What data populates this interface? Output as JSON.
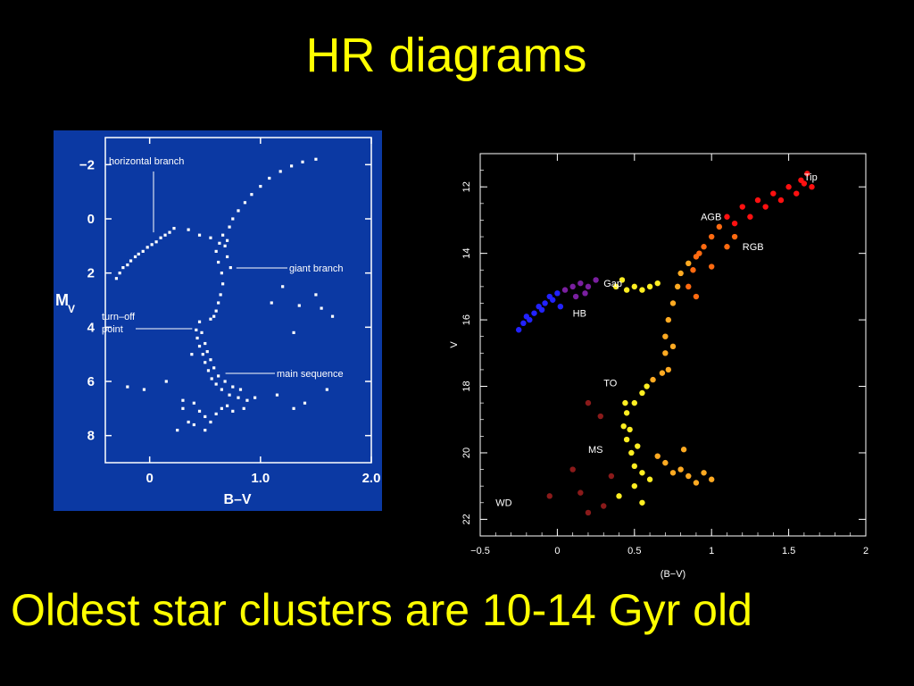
{
  "title": "HR diagrams",
  "footer": "Oldest star clusters are 10-14 Gyr old",
  "colors": {
    "background": "#000000",
    "text": "#ffff00",
    "left_panel": "#0b39a3",
    "left_points": "#ffffff"
  },
  "chart_data": [
    {
      "type": "scatter",
      "xlabel": "B–V",
      "ylabel": "M",
      "ylabel_sub": "V",
      "xlim": [
        -0.4,
        2.0
      ],
      "ylim": [
        9.0,
        -3.0
      ],
      "x_ticks": [
        {
          "value": 0,
          "label": "0"
        },
        {
          "value": 1.0,
          "label": "1.0"
        },
        {
          "value": 2.0,
          "label": "2.0"
        }
      ],
      "y_ticks": [
        {
          "value": -2,
          "label": "−2"
        },
        {
          "value": 0,
          "label": "0"
        },
        {
          "value": 2,
          "label": "2"
        },
        {
          "value": 4,
          "label": "4"
        },
        {
          "value": 6,
          "label": "6"
        },
        {
          "value": 8,
          "label": "8"
        }
      ],
      "annotations": [
        {
          "text": "horizontal branch",
          "x": 0.1,
          "y": 0.5
        },
        {
          "text": "giant branch",
          "x": 0.75,
          "y": 1.5
        },
        {
          "text": "turn–off",
          "x": 0.4,
          "y": 3.8
        },
        {
          "text": "point",
          "x": 0.4,
          "y": 3.8
        },
        {
          "text": "main sequence",
          "x": 0.7,
          "y": 5.5
        }
      ],
      "series": [
        {
          "name": "",
          "points": [
            [
              -0.3,
              2.2
            ],
            [
              -0.27,
              2.0
            ],
            [
              -0.24,
              1.8
            ],
            [
              -0.2,
              1.7
            ],
            [
              -0.17,
              1.55
            ],
            [
              -0.13,
              1.4
            ],
            [
              -0.1,
              1.3
            ],
            [
              -0.06,
              1.2
            ],
            [
              -0.02,
              1.05
            ],
            [
              0.02,
              0.95
            ],
            [
              0.06,
              0.85
            ],
            [
              0.1,
              0.7
            ],
            [
              0.14,
              0.6
            ],
            [
              0.18,
              0.5
            ],
            [
              0.22,
              0.35
            ],
            [
              0.35,
              0.4
            ],
            [
              0.45,
              0.6
            ],
            [
              0.55,
              0.7
            ],
            [
              0.6,
              1.2
            ],
            [
              0.62,
              1.6
            ],
            [
              0.65,
              2.0
            ],
            [
              0.66,
              2.4
            ],
            [
              0.64,
              2.8
            ],
            [
              0.62,
              3.1
            ],
            [
              0.6,
              3.4
            ],
            [
              0.58,
              3.6
            ],
            [
              0.55,
              3.7
            ],
            [
              0.7,
              0.8
            ],
            [
              0.72,
              0.3
            ],
            [
              0.75,
              0.0
            ],
            [
              0.8,
              -0.3
            ],
            [
              0.86,
              -0.6
            ],
            [
              0.92,
              -0.9
            ],
            [
              1.0,
              -1.2
            ],
            [
              1.08,
              -1.5
            ],
            [
              1.18,
              -1.75
            ],
            [
              1.28,
              -1.95
            ],
            [
              1.38,
              -2.1
            ],
            [
              1.5,
              -2.2
            ],
            [
              0.68,
              1.0
            ],
            [
              0.7,
              1.4
            ],
            [
              0.73,
              1.8
            ],
            [
              0.66,
              0.6
            ],
            [
              0.63,
              0.9
            ],
            [
              0.45,
              3.8
            ],
            [
              0.42,
              4.1
            ],
            [
              0.43,
              4.4
            ],
            [
              0.45,
              4.7
            ],
            [
              0.48,
              5.0
            ],
            [
              0.5,
              5.3
            ],
            [
              0.53,
              5.6
            ],
            [
              0.56,
              5.9
            ],
            [
              0.6,
              6.1
            ],
            [
              0.65,
              6.3
            ],
            [
              0.72,
              6.5
            ],
            [
              0.8,
              6.6
            ],
            [
              0.88,
              6.7
            ],
            [
              0.95,
              6.6
            ],
            [
              0.47,
              4.2
            ],
            [
              0.5,
              4.6
            ],
            [
              0.52,
              4.9
            ],
            [
              0.55,
              5.2
            ],
            [
              0.58,
              5.5
            ],
            [
              0.62,
              5.8
            ],
            [
              0.68,
              6.0
            ],
            [
              0.75,
              6.2
            ],
            [
              0.82,
              6.3
            ],
            [
              0.4,
              6.8
            ],
            [
              0.45,
              7.1
            ],
            [
              0.5,
              7.3
            ],
            [
              0.55,
              7.5
            ],
            [
              0.6,
              7.2
            ],
            [
              0.65,
              7.0
            ],
            [
              0.7,
              6.9
            ],
            [
              0.75,
              7.1
            ],
            [
              0.85,
              7.0
            ],
            [
              0.3,
              7.0
            ],
            [
              0.35,
              7.5
            ],
            [
              0.25,
              7.8
            ],
            [
              0.4,
              7.6
            ],
            [
              0.5,
              7.8
            ],
            [
              1.2,
              2.5
            ],
            [
              1.35,
              3.2
            ],
            [
              1.55,
              3.3
            ],
            [
              1.5,
              2.8
            ],
            [
              1.1,
              3.1
            ],
            [
              1.3,
              4.2
            ],
            [
              1.65,
              3.6
            ],
            [
              1.6,
              6.3
            ],
            [
              1.4,
              6.8
            ],
            [
              1.15,
              6.5
            ],
            [
              1.3,
              7.0
            ],
            [
              -0.2,
              6.2
            ],
            [
              -0.05,
              6.3
            ],
            [
              0.15,
              6.0
            ],
            [
              0.3,
              6.7
            ],
            [
              0.38,
              5.0
            ]
          ]
        }
      ]
    },
    {
      "type": "scatter",
      "xlabel": "(B−V)",
      "ylabel": "V",
      "xlim": [
        -0.5,
        2.0
      ],
      "ylim": [
        22.5,
        11.0
      ],
      "x_ticks": [
        {
          "value": -0.5,
          "label": "−0.5"
        },
        {
          "value": 0,
          "label": "0"
        },
        {
          "value": 0.5,
          "label": "0.5"
        },
        {
          "value": 1,
          "label": "1"
        },
        {
          "value": 1.5,
          "label": "1.5"
        },
        {
          "value": 2,
          "label": "2"
        }
      ],
      "y_ticks": [
        {
          "value": 12,
          "label": "12"
        },
        {
          "value": 14,
          "label": "14"
        },
        {
          "value": 16,
          "label": "16"
        },
        {
          "value": 18,
          "label": "18"
        },
        {
          "value": 20,
          "label": "20"
        },
        {
          "value": 22,
          "label": "22"
        }
      ],
      "annotations": [
        {
          "text": "Tip",
          "x": 1.6,
          "y": 11.8
        },
        {
          "text": "AGB",
          "x": 0.93,
          "y": 13.0
        },
        {
          "text": "RGB",
          "x": 1.2,
          "y": 13.9
        },
        {
          "text": "Gap",
          "x": 0.3,
          "y": 15.0
        },
        {
          "text": "HB",
          "x": 0.1,
          "y": 15.9
        },
        {
          "text": "TO",
          "x": 0.3,
          "y": 18.0
        },
        {
          "text": "MS",
          "x": 0.2,
          "y": 20.0
        },
        {
          "text": "WD",
          "x": -0.4,
          "y": 21.6
        }
      ],
      "series": [
        {
          "name": "",
          "color": "#2222ff",
          "points": [
            [
              -0.2,
              15.9
            ],
            [
              -0.15,
              15.8
            ],
            [
              -0.12,
              15.6
            ],
            [
              -0.08,
              15.5
            ],
            [
              -0.05,
              15.3
            ],
            [
              0.0,
              15.2
            ],
            [
              -0.18,
              16.0
            ],
            [
              -0.22,
              16.1
            ],
            [
              -0.1,
              15.7
            ],
            [
              -0.03,
              15.4
            ],
            [
              0.02,
              15.6
            ],
            [
              -0.25,
              16.3
            ]
          ]
        },
        {
          "name": "",
          "color": "#7a1fa0",
          "points": [
            [
              0.05,
              15.1
            ],
            [
              0.1,
              15.0
            ],
            [
              0.15,
              14.9
            ],
            [
              0.2,
              15.0
            ],
            [
              0.25,
              14.8
            ],
            [
              0.12,
              15.3
            ],
            [
              0.18,
              15.2
            ]
          ]
        },
        {
          "name": "",
          "color": "#ffee22",
          "points": [
            [
              0.45,
              15.1
            ],
            [
              0.5,
              15.0
            ],
            [
              0.55,
              15.1
            ],
            [
              0.6,
              15.0
            ],
            [
              0.65,
              14.9
            ],
            [
              0.38,
              15.0
            ],
            [
              0.42,
              14.8
            ],
            [
              0.55,
              18.2
            ],
            [
              0.5,
              18.5
            ],
            [
              0.45,
              18.8
            ],
            [
              0.43,
              19.2
            ],
            [
              0.45,
              19.6
            ],
            [
              0.48,
              20.0
            ],
            [
              0.5,
              20.4
            ],
            [
              0.55,
              20.6
            ],
            [
              0.6,
              20.8
            ],
            [
              0.52,
              19.8
            ],
            [
              0.47,
              19.3
            ],
            [
              0.44,
              18.5
            ],
            [
              0.58,
              18.0
            ],
            [
              0.5,
              21.0
            ],
            [
              0.4,
              21.3
            ],
            [
              0.55,
              21.5
            ]
          ]
        },
        {
          "name": "",
          "color": "#ffaa22",
          "points": [
            [
              0.72,
              17.5
            ],
            [
              0.7,
              17.0
            ],
            [
              0.7,
              16.5
            ],
            [
              0.72,
              16.0
            ],
            [
              0.75,
              15.5
            ],
            [
              0.78,
              15.0
            ],
            [
              0.8,
              14.6
            ],
            [
              0.85,
              14.3
            ],
            [
              0.75,
              16.8
            ],
            [
              0.68,
              17.6
            ],
            [
              0.62,
              17.8
            ],
            [
              0.8,
              20.5
            ],
            [
              0.85,
              20.7
            ],
            [
              0.9,
              20.9
            ],
            [
              0.75,
              20.6
            ],
            [
              0.7,
              20.3
            ],
            [
              0.95,
              20.6
            ],
            [
              1.0,
              20.8
            ],
            [
              0.65,
              20.1
            ],
            [
              0.82,
              19.9
            ]
          ]
        },
        {
          "name": "",
          "color": "#ff6a10",
          "points": [
            [
              0.9,
              14.1
            ],
            [
              0.95,
              13.8
            ],
            [
              1.0,
              13.5
            ],
            [
              1.05,
              13.2
            ],
            [
              0.88,
              14.5
            ],
            [
              0.92,
              14.0
            ],
            [
              1.1,
              13.8
            ],
            [
              1.15,
              13.5
            ],
            [
              0.85,
              15.0
            ],
            [
              0.9,
              15.3
            ],
            [
              1.0,
              14.4
            ]
          ]
        },
        {
          "name": "",
          "color": "#ff1010",
          "points": [
            [
              1.1,
              12.9
            ],
            [
              1.2,
              12.6
            ],
            [
              1.3,
              12.4
            ],
            [
              1.4,
              12.2
            ],
            [
              1.5,
              12.0
            ],
            [
              1.58,
              11.8
            ],
            [
              1.62,
              11.6
            ],
            [
              1.65,
              12.0
            ],
            [
              1.45,
              12.4
            ],
            [
              1.35,
              12.6
            ],
            [
              1.25,
              12.9
            ],
            [
              1.15,
              13.1
            ],
            [
              1.55,
              12.2
            ],
            [
              1.6,
              11.9
            ]
          ]
        },
        {
          "name": "",
          "color": "#8a1a1a",
          "points": [
            [
              0.2,
              18.5
            ],
            [
              0.28,
              18.9
            ],
            [
              0.35,
              20.7
            ],
            [
              0.1,
              20.5
            ],
            [
              0.15,
              21.2
            ],
            [
              -0.05,
              21.3
            ],
            [
              0.3,
              21.6
            ],
            [
              0.2,
              21.8
            ]
          ]
        }
      ]
    }
  ]
}
